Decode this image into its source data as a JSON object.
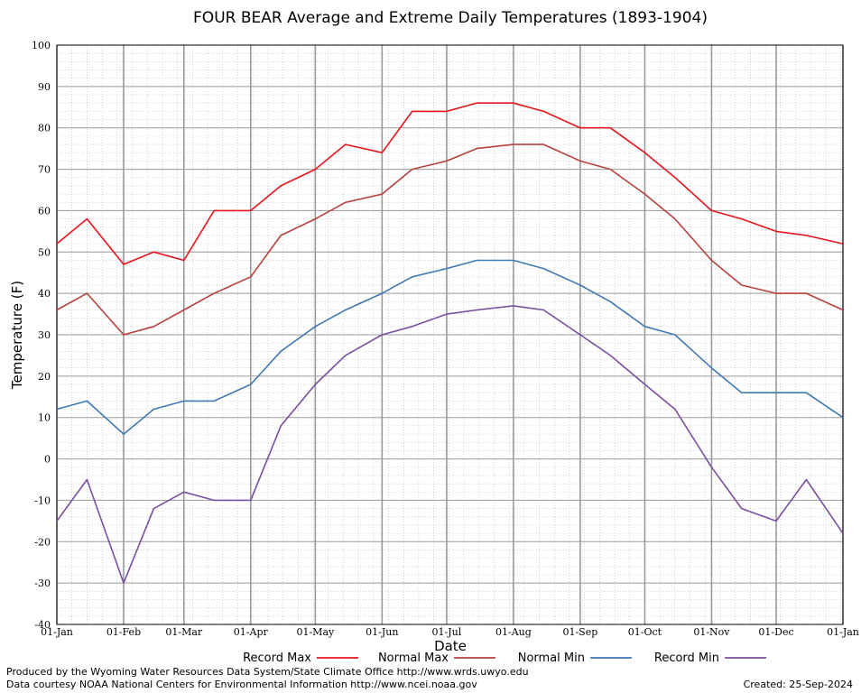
{
  "chart_data": {
    "type": "line",
    "title": "FOUR BEAR Average and Extreme Daily Temperatures (1893-1904)",
    "xlabel": "Date",
    "ylabel": "Temperature (F)",
    "ylim": [
      -40,
      100
    ],
    "yticks": [
      "100",
      "90",
      "80",
      "70",
      "60",
      "50",
      "40",
      "30",
      "20",
      "10",
      "0",
      "-10",
      "-20",
      "-30",
      "-40"
    ],
    "xticks": [
      "01-Jan",
      "01-Feb",
      "01-Mar",
      "01-Apr",
      "01-May",
      "01-Jun",
      "01-Jul",
      "01-Aug",
      "01-Sep",
      "01-Oct",
      "01-Nov",
      "01-Dec",
      "01-Jan"
    ],
    "x_day_of_year": [
      1,
      15,
      32,
      46,
      60,
      74,
      91,
      105,
      121,
      135,
      152,
      166,
      182,
      196,
      213,
      227,
      244,
      258,
      274,
      288,
      305,
      319,
      335,
      349,
      366
    ],
    "grid": true,
    "legend_position": "bottom",
    "series": [
      {
        "name": "Record Max",
        "color": "#e8141c",
        "values": [
          52,
          58,
          47,
          50,
          48,
          60,
          60,
          66,
          70,
          76,
          74,
          84,
          84,
          86,
          86,
          84,
          80,
          80,
          74,
          68,
          60,
          58,
          55,
          54,
          52
        ]
      },
      {
        "name": "Normal Max",
        "color": "#b8403e",
        "values": [
          36,
          40,
          30,
          32,
          36,
          40,
          44,
          54,
          58,
          62,
          64,
          70,
          72,
          75,
          76,
          76,
          72,
          70,
          64,
          58,
          48,
          42,
          40,
          40,
          36
        ]
      },
      {
        "name": "Normal Min",
        "color": "#4179b4",
        "values": [
          12,
          14,
          6,
          12,
          14,
          14,
          18,
          26,
          32,
          36,
          40,
          44,
          46,
          48,
          48,
          46,
          42,
          38,
          32,
          30,
          22,
          16,
          16,
          16,
          10
        ]
      },
      {
        "name": "Record Min",
        "color": "#7a4fa0",
        "values": [
          -15,
          -5,
          -30,
          -12,
          -8,
          -10,
          -10,
          8,
          18,
          25,
          30,
          32,
          35,
          36,
          37,
          36,
          30,
          25,
          18,
          12,
          -2,
          -12,
          -15,
          -5,
          -18
        ]
      }
    ]
  },
  "footer": {
    "left_line1": "Produced by the Wyoming Water Resources Data System/State Climate Office http://www.wrds.uwyo.edu",
    "left_line2": "Data courtesy NOAA National Centers for Environmental Information http://www.ncei.noaa.gov",
    "right": "Created: 25-Sep-2024"
  }
}
